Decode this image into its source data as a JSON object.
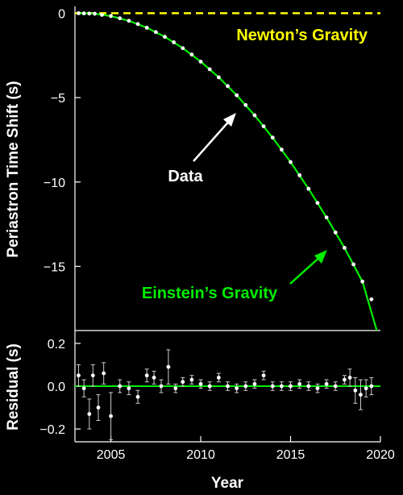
{
  "chart_data": [
    {
      "type": "line",
      "panel": "main",
      "ylabel": "Periastron Time Shift (s)",
      "xlim": [
        2003,
        2020
      ],
      "ylim": [
        -18.8,
        0.4
      ],
      "yticks": [
        0,
        -5,
        -10,
        -15
      ],
      "ytick_labels": [
        "0",
        "−5",
        "−10",
        "−15"
      ],
      "grid": false,
      "series": [
        {
          "name": "Newton’s Gravity",
          "color": "#ffff00",
          "style": "dashed",
          "x": [
            2003,
            2020
          ],
          "y": [
            0,
            0
          ]
        },
        {
          "name": "Einstein’s Gravity",
          "color": "#00ee00",
          "style": "solid",
          "x": [
            2003.2,
            2004,
            2005,
            2006,
            2007,
            2008,
            2009,
            2010,
            2011,
            2012,
            2013,
            2014,
            2015,
            2016,
            2017,
            2018,
            2019,
            2019.8
          ],
          "y": [
            0.0,
            -0.02,
            -0.17,
            -0.45,
            -0.86,
            -1.4,
            -2.07,
            -2.87,
            -3.8,
            -4.86,
            -6.05,
            -7.37,
            -8.82,
            -10.4,
            -12.1,
            -13.9,
            -15.9,
            -18.8
          ]
        },
        {
          "name": "Data",
          "color": "#ffffff",
          "style": "points",
          "x": [
            2003.2,
            2003.5,
            2003.8,
            2004.1,
            2004.5,
            2005.0,
            2005.5,
            2006.0,
            2006.5,
            2007.0,
            2007.5,
            2008.0,
            2008.5,
            2009.0,
            2009.5,
            2010.0,
            2010.5,
            2011.0,
            2011.5,
            2012.0,
            2012.5,
            2013.0,
            2013.5,
            2014.0,
            2014.5,
            2015.0,
            2015.5,
            2016.0,
            2016.5,
            2017.0,
            2017.5,
            2018.0,
            2018.5,
            2019.0,
            2019.5
          ],
          "y": [
            0.0,
            -0.01,
            -0.02,
            -0.03,
            -0.1,
            -0.17,
            -0.3,
            -0.45,
            -0.64,
            -0.86,
            -1.12,
            -1.4,
            -1.72,
            -2.07,
            -2.45,
            -2.87,
            -3.32,
            -3.8,
            -4.32,
            -4.86,
            -5.44,
            -6.05,
            -6.7,
            -7.37,
            -8.08,
            -8.82,
            -9.6,
            -10.4,
            -11.24,
            -12.1,
            -12.99,
            -13.9,
            -14.88,
            -15.9,
            -16.95
          ]
        }
      ],
      "annotations": [
        {
          "text": "Newton’s Gravity",
          "color": "#ffff00"
        },
        {
          "text": "Data",
          "color": "#ffffff"
        },
        {
          "text": "Einstein’s Gravity",
          "color": "#00ee00"
        }
      ]
    },
    {
      "type": "scatter",
      "panel": "residual",
      "xlabel": "Year",
      "ylabel": "Residual (s)",
      "xlim": [
        2003,
        2020
      ],
      "ylim": [
        -0.26,
        0.26
      ],
      "xticks": [
        2005,
        2010,
        2015,
        2020
      ],
      "xtick_labels": [
        "2005",
        "2010",
        "2015",
        "2020"
      ],
      "yticks": [
        0.2,
        0.0,
        -0.2
      ],
      "ytick_labels": [
        "0.2",
        "0.0",
        "−0.2"
      ],
      "zero_line_color": "#00ee00",
      "points": [
        {
          "x": 2003.2,
          "y": 0.05,
          "err": 0.05
        },
        {
          "x": 2003.5,
          "y": -0.01,
          "err": 0.04
        },
        {
          "x": 2003.8,
          "y": -0.13,
          "err": 0.07
        },
        {
          "x": 2004.0,
          "y": 0.05,
          "err": 0.05
        },
        {
          "x": 2004.3,
          "y": -0.1,
          "err": 0.06
        },
        {
          "x": 2004.6,
          "y": 0.06,
          "err": 0.05
        },
        {
          "x": 2005.0,
          "y": -0.14,
          "err": 0.11
        },
        {
          "x": 2005.5,
          "y": 0.0,
          "err": 0.03
        },
        {
          "x": 2006.0,
          "y": -0.01,
          "err": 0.03
        },
        {
          "x": 2006.5,
          "y": -0.05,
          "err": 0.03
        },
        {
          "x": 2007.0,
          "y": 0.05,
          "err": 0.03
        },
        {
          "x": 2007.4,
          "y": 0.04,
          "err": 0.03
        },
        {
          "x": 2007.8,
          "y": 0.0,
          "err": 0.03
        },
        {
          "x": 2008.2,
          "y": 0.09,
          "err": 0.08
        },
        {
          "x": 2008.6,
          "y": -0.01,
          "err": 0.02
        },
        {
          "x": 2009.0,
          "y": 0.02,
          "err": 0.02
        },
        {
          "x": 2009.5,
          "y": 0.03,
          "err": 0.02
        },
        {
          "x": 2010.0,
          "y": 0.01,
          "err": 0.02
        },
        {
          "x": 2010.5,
          "y": 0.0,
          "err": 0.02
        },
        {
          "x": 2011.0,
          "y": 0.04,
          "err": 0.02
        },
        {
          "x": 2011.5,
          "y": 0.0,
          "err": 0.02
        },
        {
          "x": 2012.0,
          "y": -0.01,
          "err": 0.02
        },
        {
          "x": 2012.5,
          "y": 0.0,
          "err": 0.02
        },
        {
          "x": 2013.0,
          "y": 0.01,
          "err": 0.02
        },
        {
          "x": 2013.5,
          "y": 0.05,
          "err": 0.02
        },
        {
          "x": 2014.0,
          "y": 0.0,
          "err": 0.02
        },
        {
          "x": 2014.5,
          "y": 0.0,
          "err": 0.02
        },
        {
          "x": 2015.0,
          "y": 0.0,
          "err": 0.02
        },
        {
          "x": 2015.5,
          "y": 0.01,
          "err": 0.02
        },
        {
          "x": 2016.0,
          "y": 0.0,
          "err": 0.02
        },
        {
          "x": 2016.5,
          "y": -0.01,
          "err": 0.02
        },
        {
          "x": 2017.0,
          "y": 0.01,
          "err": 0.02
        },
        {
          "x": 2017.5,
          "y": 0.0,
          "err": 0.02
        },
        {
          "x": 2018.0,
          "y": 0.03,
          "err": 0.02
        },
        {
          "x": 2018.3,
          "y": 0.04,
          "err": 0.04
        },
        {
          "x": 2018.6,
          "y": -0.02,
          "err": 0.06
        },
        {
          "x": 2018.9,
          "y": -0.04,
          "err": 0.07
        },
        {
          "x": 2019.2,
          "y": -0.01,
          "err": 0.04
        },
        {
          "x": 2019.5,
          "y": 0.0,
          "err": 0.04
        }
      ]
    }
  ]
}
